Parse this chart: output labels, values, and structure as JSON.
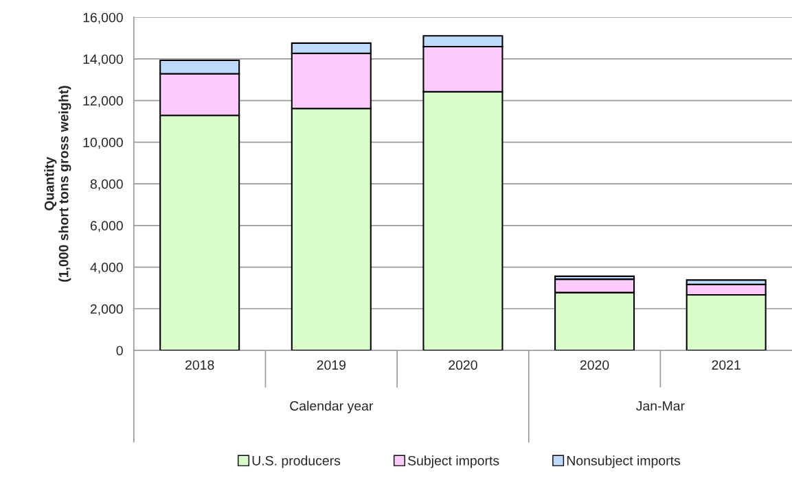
{
  "chart_data": {
    "type": "bar",
    "stacked": true,
    "ylabel": "Quantity\n(1,000 short tons gross weight)",
    "categories": [
      "2018",
      "2019",
      "2020",
      "2020",
      "2021"
    ],
    "annotations": [
      "Calendar year",
      "Jan-Mar"
    ],
    "series": [
      {
        "name": "U.S. producers",
        "color": "#d9fdc9",
        "values": [
          11290,
          11620,
          12420,
          2780,
          2670
        ]
      },
      {
        "name": "Subject imports",
        "color": "#fccbfc",
        "values": [
          2000,
          2650,
          2170,
          640,
          500
        ]
      },
      {
        "name": "Nonsubject imports",
        "color": "#bfdafc",
        "values": [
          640,
          490,
          520,
          140,
          210
        ]
      }
    ],
    "ylim": [
      0,
      16000
    ],
    "yticks": [
      {
        "value": 0,
        "label": "0"
      },
      {
        "value": 2000,
        "label": "2,000"
      },
      {
        "value": 4000,
        "label": "4,000"
      },
      {
        "value": 6000,
        "label": "6,000"
      },
      {
        "value": 8000,
        "label": "8,000"
      },
      {
        "value": 10000,
        "label": "10,000"
      },
      {
        "value": 12000,
        "label": "12,000"
      },
      {
        "value": 14000,
        "label": "14,000"
      },
      {
        "value": 16000,
        "label": "16,000"
      }
    ],
    "grid": "y",
    "legend": "bottom"
  }
}
